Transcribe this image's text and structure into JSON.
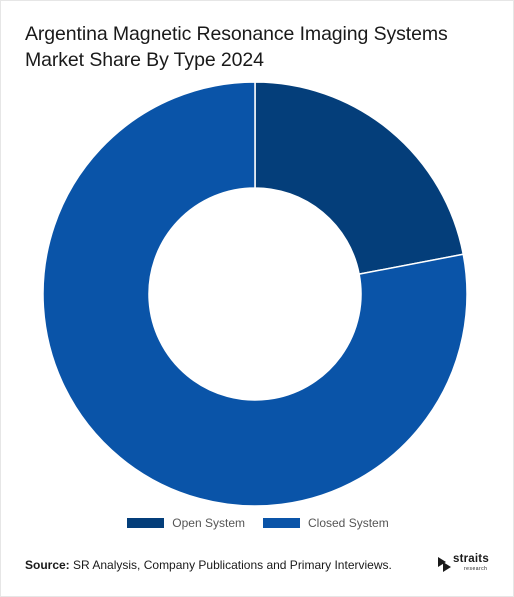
{
  "title": "Argentina Magnetic Resonance Imaging Systems Market Share By Type 2024",
  "chart_data": {
    "type": "pie",
    "variant": "donut",
    "title": "Argentina Magnetic Resonance Imaging Systems Market Share By Type 2024",
    "categories": [
      "Open System",
      "Closed System"
    ],
    "values": [
      22,
      78
    ],
    "colors": [
      "#043e7a",
      "#0a54a8"
    ],
    "legend_position": "bottom"
  },
  "source": {
    "label": "Source:",
    "text": "SR Analysis, Company Publications and Primary Interviews."
  },
  "logo": {
    "word": "straits",
    "sub": "research"
  }
}
